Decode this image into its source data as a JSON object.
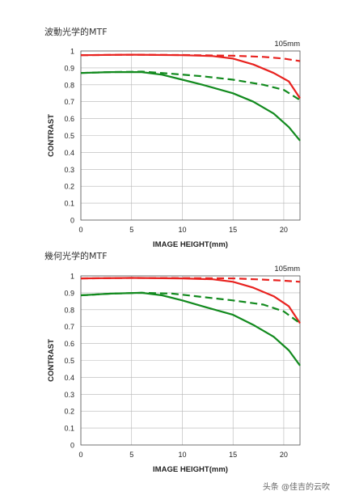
{
  "page": {
    "watermark": "头条 @佳吉的云吹"
  },
  "chart_data": [
    {
      "type": "line",
      "title": "波動光学的MTF",
      "focal_length": "105mm",
      "xlabel": "IMAGE HEIGHT(mm)",
      "ylabel": "CONTRAST",
      "xlim": [
        0,
        21.6
      ],
      "ylim": [
        0,
        1
      ],
      "x_ticks": [
        0,
        5,
        10,
        15,
        20
      ],
      "y_ticks": [
        0,
        0.1,
        0.2,
        0.3,
        0.4,
        0.5,
        0.6,
        0.7,
        0.8,
        0.9,
        1
      ],
      "y_tick_labels": [
        "0",
        "0.1",
        "0.2",
        "0.3",
        "0.4",
        "0.5",
        "0.6",
        "0.7",
        "0.8",
        "0.9",
        "1"
      ],
      "grid": true,
      "series": [
        {
          "color": "#e8221f",
          "dash": false,
          "x": [
            0,
            5,
            10,
            13,
            15,
            17,
            19,
            20.5,
            21.6
          ],
          "y": [
            0.975,
            0.978,
            0.975,
            0.97,
            0.955,
            0.92,
            0.87,
            0.82,
            0.72
          ]
        },
        {
          "color": "#e8221f",
          "dash": true,
          "x": [
            0,
            5,
            10,
            15,
            18,
            20,
            21.6
          ],
          "y": [
            0.975,
            0.978,
            0.976,
            0.972,
            0.965,
            0.955,
            0.94
          ]
        },
        {
          "color": "#128a1e",
          "dash": false,
          "x": [
            0,
            3,
            6,
            8,
            10,
            12,
            15,
            17,
            19,
            20.5,
            21.6
          ],
          "y": [
            0.87,
            0.875,
            0.875,
            0.86,
            0.83,
            0.8,
            0.75,
            0.7,
            0.63,
            0.55,
            0.47
          ]
        },
        {
          "color": "#128a1e",
          "dash": true,
          "x": [
            0,
            3,
            6,
            9,
            12,
            15,
            18,
            20,
            21.6
          ],
          "y": [
            0.87,
            0.875,
            0.878,
            0.865,
            0.85,
            0.83,
            0.8,
            0.77,
            0.71
          ]
        }
      ]
    },
    {
      "type": "line",
      "title": "幾何光学的MTF",
      "focal_length": "105mm",
      "xlabel": "IMAGE HEIGHT(mm)",
      "ylabel": "CONTRAST",
      "xlim": [
        0,
        21.6
      ],
      "ylim": [
        0,
        1
      ],
      "x_ticks": [
        0,
        5,
        10,
        15,
        20
      ],
      "y_ticks": [
        0,
        0.1,
        0.2,
        0.3,
        0.4,
        0.5,
        0.6,
        0.7,
        0.8,
        0.9,
        1
      ],
      "y_tick_labels": [
        "0",
        "0.1",
        "0.2",
        "0.3",
        "0.4",
        "0.5",
        "0.6",
        "0.7",
        "0.8",
        "0.9",
        "1"
      ],
      "grid": true,
      "series": [
        {
          "color": "#e8221f",
          "dash": false,
          "x": [
            0,
            5,
            10,
            13,
            15,
            17,
            19,
            20.5,
            21.6
          ],
          "y": [
            0.985,
            0.988,
            0.985,
            0.98,
            0.965,
            0.93,
            0.88,
            0.82,
            0.72
          ]
        },
        {
          "color": "#e8221f",
          "dash": true,
          "x": [
            0,
            5,
            10,
            15,
            18,
            20,
            21.6
          ],
          "y": [
            0.985,
            0.988,
            0.987,
            0.985,
            0.978,
            0.972,
            0.965
          ]
        },
        {
          "color": "#128a1e",
          "dash": false,
          "x": [
            0,
            3,
            6,
            8,
            10,
            12,
            15,
            17,
            19,
            20.5,
            21.6
          ],
          "y": [
            0.885,
            0.895,
            0.9,
            0.885,
            0.855,
            0.82,
            0.77,
            0.71,
            0.64,
            0.56,
            0.47
          ]
        },
        {
          "color": "#128a1e",
          "dash": true,
          "x": [
            0,
            3,
            6,
            9,
            12,
            15,
            18,
            20,
            21.6
          ],
          "y": [
            0.885,
            0.895,
            0.9,
            0.895,
            0.875,
            0.855,
            0.83,
            0.79,
            0.72
          ]
        }
      ]
    }
  ]
}
